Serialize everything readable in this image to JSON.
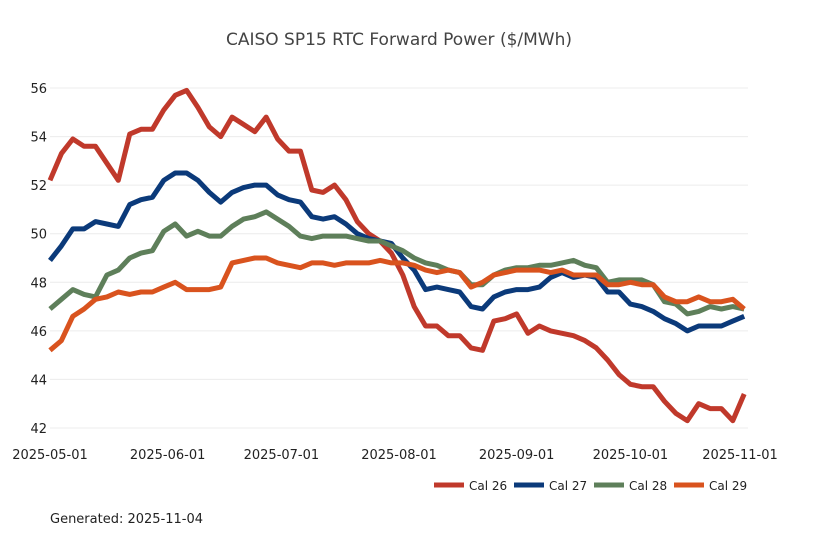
{
  "chart_data": {
    "type": "line",
    "title": "CAISO SP15 RTC Forward Power ($/MWh)",
    "xlabel": "",
    "ylabel": "",
    "ylim": [
      42,
      56
    ],
    "yticks": [
      42,
      44,
      46,
      48,
      50,
      52,
      54,
      56
    ],
    "xlim": [
      "2025-05-01",
      "2025-11-01"
    ],
    "xticks": [
      "2025-05-01",
      "2025-06-01",
      "2025-07-01",
      "2025-08-01",
      "2025-09-01",
      "2025-10-01",
      "2025-11-01"
    ],
    "grid": "horizontal",
    "legend_position": "bottom-right",
    "x": [
      "2025-05-01",
      "2025-05-04",
      "2025-05-07",
      "2025-05-10",
      "2025-05-13",
      "2025-05-16",
      "2025-05-19",
      "2025-05-22",
      "2025-05-25",
      "2025-05-28",
      "2025-05-31",
      "2025-06-03",
      "2025-06-06",
      "2025-06-09",
      "2025-06-12",
      "2025-06-15",
      "2025-06-18",
      "2025-06-21",
      "2025-06-24",
      "2025-06-27",
      "2025-06-30",
      "2025-07-03",
      "2025-07-06",
      "2025-07-09",
      "2025-07-12",
      "2025-07-15",
      "2025-07-18",
      "2025-07-21",
      "2025-07-24",
      "2025-07-27",
      "2025-07-30",
      "2025-08-02",
      "2025-08-05",
      "2025-08-08",
      "2025-08-11",
      "2025-08-14",
      "2025-08-17",
      "2025-08-20",
      "2025-08-23",
      "2025-08-26",
      "2025-08-29",
      "2025-09-01",
      "2025-09-04",
      "2025-09-07",
      "2025-09-10",
      "2025-09-13",
      "2025-09-16",
      "2025-09-19",
      "2025-09-22",
      "2025-09-25",
      "2025-09-28",
      "2025-10-01",
      "2025-10-04",
      "2025-10-07",
      "2025-10-10",
      "2025-10-13",
      "2025-10-16",
      "2025-10-19",
      "2025-10-22",
      "2025-10-25",
      "2025-10-28",
      "2025-10-31"
    ],
    "series": [
      {
        "name": "Cal 26",
        "color": "#c0392b",
        "values": [
          52.2,
          53.3,
          53.9,
          53.6,
          53.6,
          52.9,
          52.2,
          54.1,
          54.3,
          54.3,
          55.1,
          55.7,
          55.9,
          55.2,
          54.4,
          54.0,
          54.8,
          54.5,
          54.2,
          54.8,
          53.9,
          53.4,
          53.4,
          51.8,
          51.7,
          52.0,
          51.4,
          50.5,
          50.0,
          49.7,
          49.2,
          48.3,
          47.0,
          46.2,
          46.2,
          45.8,
          45.8,
          45.3,
          45.2,
          46.4,
          46.5,
          46.7,
          45.9,
          46.2,
          46.0,
          45.9,
          45.8,
          45.6,
          45.3,
          44.8,
          44.2,
          43.8,
          43.7,
          43.7,
          43.1,
          42.6,
          42.3,
          43.0,
          42.8,
          42.8,
          42.3,
          43.4
        ]
      },
      {
        "name": "Cal 27",
        "color": "#0b3a7a",
        "values": [
          48.9,
          49.5,
          50.2,
          50.2,
          50.5,
          50.4,
          50.3,
          51.2,
          51.4,
          51.5,
          52.2,
          52.5,
          52.5,
          52.2,
          51.7,
          51.3,
          51.7,
          51.9,
          52.0,
          52.0,
          51.6,
          51.4,
          51.3,
          50.7,
          50.6,
          50.7,
          50.4,
          50.0,
          49.8,
          49.7,
          49.6,
          49.0,
          48.5,
          47.7,
          47.8,
          47.7,
          47.6,
          47.0,
          46.9,
          47.4,
          47.6,
          47.7,
          47.7,
          47.8,
          48.2,
          48.4,
          48.2,
          48.3,
          48.2,
          47.6,
          47.6,
          47.1,
          47.0,
          46.8,
          46.5,
          46.3,
          46.0,
          46.2,
          46.2,
          46.2,
          46.4,
          46.6
        ]
      },
      {
        "name": "Cal 28",
        "color": "#5e7f5a",
        "values": [
          46.9,
          47.3,
          47.7,
          47.5,
          47.4,
          48.3,
          48.5,
          49.0,
          49.2,
          49.3,
          50.1,
          50.4,
          49.9,
          50.1,
          49.9,
          49.9,
          50.3,
          50.6,
          50.7,
          50.9,
          50.6,
          50.3,
          49.9,
          49.8,
          49.9,
          49.9,
          49.9,
          49.8,
          49.7,
          49.7,
          49.5,
          49.3,
          49.0,
          48.8,
          48.7,
          48.5,
          48.4,
          47.9,
          47.9,
          48.3,
          48.5,
          48.6,
          48.6,
          48.7,
          48.7,
          48.8,
          48.9,
          48.7,
          48.6,
          48.0,
          48.1,
          48.1,
          48.1,
          47.9,
          47.2,
          47.1,
          46.7,
          46.8,
          47.0,
          46.9,
          47.0,
          46.9
        ]
      },
      {
        "name": "Cal 29",
        "color": "#d9531e",
        "values": [
          45.2,
          45.6,
          46.6,
          46.9,
          47.3,
          47.4,
          47.6,
          47.5,
          47.6,
          47.6,
          47.8,
          48.0,
          47.7,
          47.7,
          47.7,
          47.8,
          48.8,
          48.9,
          49.0,
          49.0,
          48.8,
          48.7,
          48.6,
          48.8,
          48.8,
          48.7,
          48.8,
          48.8,
          48.8,
          48.9,
          48.8,
          48.8,
          48.7,
          48.5,
          48.4,
          48.5,
          48.4,
          47.8,
          48.0,
          48.3,
          48.4,
          48.5,
          48.5,
          48.5,
          48.4,
          48.5,
          48.3,
          48.3,
          48.3,
          47.9,
          47.9,
          48.0,
          47.9,
          47.9,
          47.4,
          47.2,
          47.2,
          47.4,
          47.2,
          47.2,
          47.3,
          46.9
        ]
      }
    ]
  },
  "footer": {
    "generated": "Generated: 2025-11-04"
  }
}
